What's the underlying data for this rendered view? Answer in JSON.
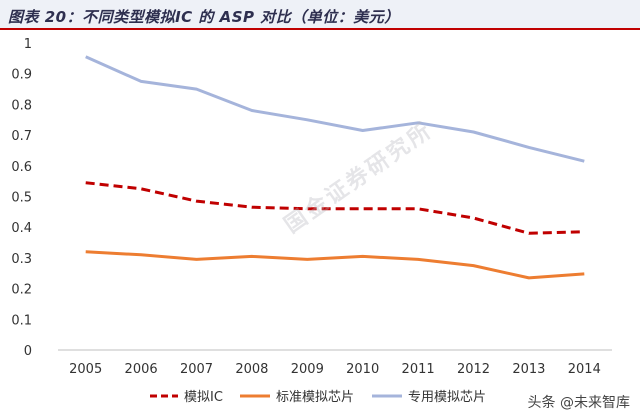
{
  "title": "图表 20：不同类型模拟IC 的 ASP 对比（单位：美元）",
  "watermark": "国金证券研究所",
  "footer_watermark": "头条 @未来智库",
  "chart_data": {
    "type": "line",
    "title": "图表 20：不同类型模拟IC 的 ASP 对比（单位：美元）",
    "x": [
      "2005",
      "2006",
      "2007",
      "2008",
      "2009",
      "2010",
      "2011",
      "2012",
      "2013",
      "2014"
    ],
    "ylim": [
      0,
      1
    ],
    "yticks": [
      "0",
      "0.1",
      "0.2",
      "0.3",
      "0.4",
      "0.5",
      "0.6",
      "0.7",
      "0.8",
      "0.9",
      "1"
    ],
    "grid": false,
    "legend_position": "bottom",
    "series": [
      {
        "name": "模拟IC",
        "values": [
          0.545,
          0.525,
          0.485,
          0.465,
          0.46,
          0.46,
          0.46,
          0.43,
          0.38,
          0.385
        ],
        "color": "#c00000",
        "style": "dashed"
      },
      {
        "name": "标准模拟芯片",
        "values": [
          0.32,
          0.31,
          0.295,
          0.305,
          0.295,
          0.305,
          0.295,
          0.275,
          0.235,
          0.248
        ],
        "color": "#ed7d31",
        "style": "solid"
      },
      {
        "name": "专用模拟芯片",
        "values": [
          0.955,
          0.875,
          0.85,
          0.78,
          0.75,
          0.715,
          0.74,
          0.71,
          0.66,
          0.615
        ],
        "color": "#a5b4db",
        "style": "solid"
      }
    ]
  }
}
